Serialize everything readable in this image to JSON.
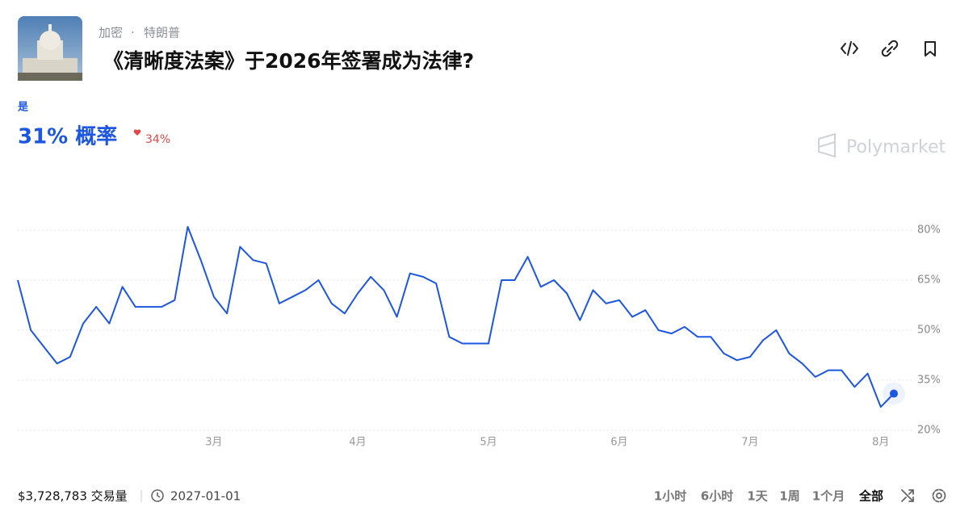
{
  "header": {
    "breadcrumb": [
      "加密",
      "特朗普"
    ],
    "breadcrumb_separator": "·",
    "title": "《清晰度法案》于2026年签署成为法律?"
  },
  "outcome": {
    "name": "是",
    "chance": "31% 概率",
    "change": "34%"
  },
  "logo": "Polymarket",
  "chart_data": {
    "type": "line",
    "categories": [
      null,
      null,
      null,
      null,
      null,
      null,
      null,
      null,
      null,
      null,
      null,
      null,
      null,
      null,
      null,
      "3月",
      null,
      null,
      null,
      null,
      null,
      null,
      null,
      null,
      null,
      null,
      "4月",
      null,
      null,
      null,
      null,
      null,
      null,
      null,
      null,
      null,
      "5月",
      null,
      null,
      null,
      null,
      null,
      null,
      null,
      null,
      null,
      "6月",
      null,
      null,
      null,
      null,
      null,
      null,
      null,
      null,
      null,
      "7月",
      null,
      null,
      null,
      null,
      null,
      null,
      null,
      null,
      null,
      "8月",
      null
    ],
    "series": [
      {
        "name": "是",
        "color": "#1d56e0",
        "values": [
          65,
          50,
          45,
          40,
          42,
          52,
          57,
          52,
          63,
          57,
          57,
          57,
          59,
          81,
          71,
          60,
          55,
          75,
          71,
          70,
          58,
          60,
          62,
          65,
          58,
          55,
          61,
          66,
          62,
          54,
          67,
          66,
          64,
          48,
          46,
          46,
          46,
          65,
          65,
          72,
          63,
          65,
          61,
          53,
          62,
          58,
          59,
          54,
          56,
          50,
          49,
          51,
          48,
          48,
          43,
          41,
          42,
          47,
          50,
          43,
          40,
          36,
          38,
          38,
          33,
          37,
          27,
          31
        ]
      }
    ],
    "ylim": [
      20,
      80
    ],
    "yticks": [
      {
        "value": 80,
        "label": "80%"
      },
      {
        "value": 65,
        "label": "65%"
      },
      {
        "value": 50,
        "label": "50%"
      },
      {
        "value": 35,
        "label": "35%"
      },
      {
        "value": 20,
        "label": "20%"
      }
    ],
    "grid": true
  },
  "footer": {
    "volume": "$3,728,783 交易量",
    "end_date": "2027-01-01",
    "ranges": [
      "1小时",
      "6小时",
      "1天",
      "1周",
      "1个月",
      "全部"
    ],
    "active_range": 5
  }
}
